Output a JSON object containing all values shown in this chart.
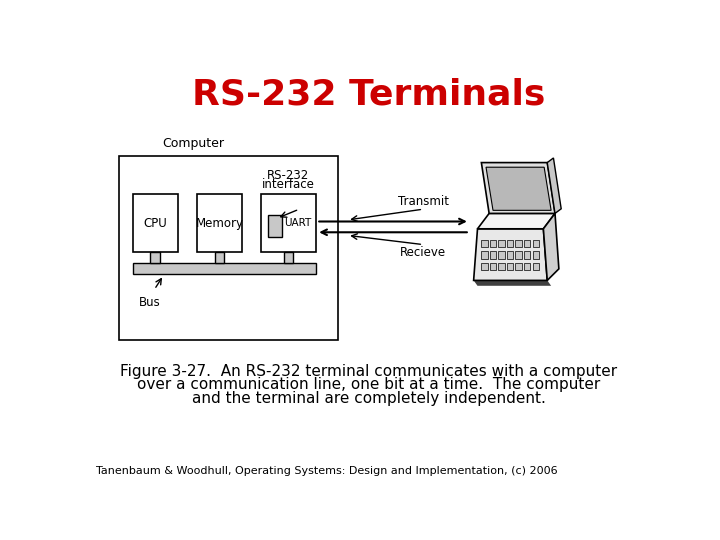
{
  "title": "RS-232 Terminals",
  "title_color": "#cc0000",
  "title_fontsize": 26,
  "caption_line1": "Figure 3-27.  An RS-232 terminal communicates with a computer",
  "caption_line2": "over a communication line, one bit at a time.  The computer",
  "caption_line3": "and the terminal are completely independent.",
  "footer": "Tanenbaum & Woodhull, Operating Systems: Design and Implementation, (c) 2006",
  "bg_color": "#ffffff",
  "label_computer": "Computer",
  "label_cpu": "CPU",
  "label_memory": "Memory",
  "label_rs232_1": "RS-232",
  "label_rs232_2": "interface",
  "label_uart": "UART",
  "label_transmit": "Transmit",
  "label_receive": "Recieve",
  "label_bus": "Bus",
  "caption_fontsize": 11,
  "footer_fontsize": 8
}
